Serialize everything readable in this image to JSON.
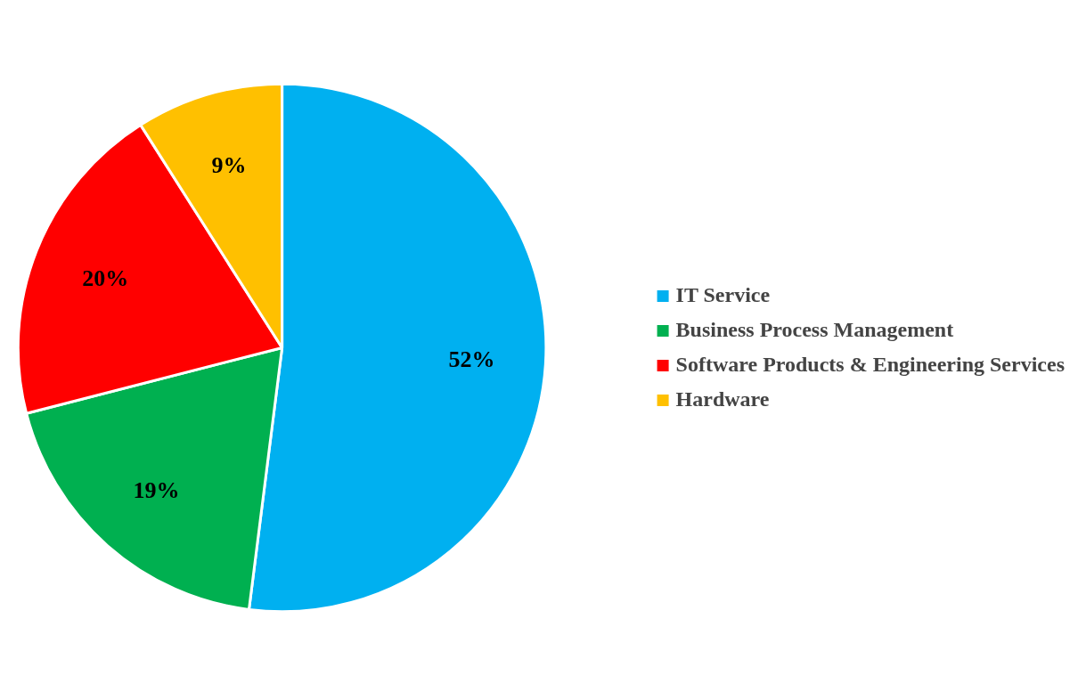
{
  "chart_data": {
    "type": "pie",
    "categories": [
      "IT Service",
      "Business Process Management",
      "Software Products & Engineering Services",
      "Hardware"
    ],
    "values": [
      52,
      19,
      20,
      9
    ],
    "colors": [
      "#00b0f0",
      "#00b050",
      "#ff0000",
      "#ffc000"
    ],
    "value_labels": [
      "52%",
      "19%",
      "20%",
      "9%"
    ],
    "legend": "right"
  }
}
